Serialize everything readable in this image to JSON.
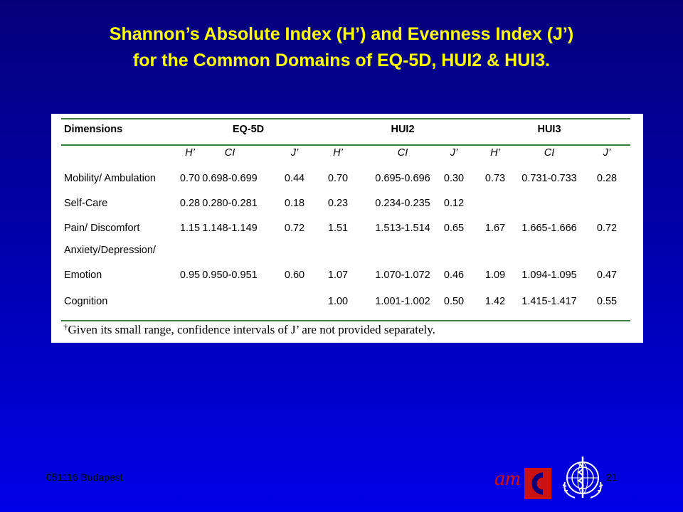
{
  "title": {
    "line1": "Shannon’s Absolute Index (H’) and Evenness Index (J’)",
    "line2": "for the Common Domains of EQ-5D, HUI2 & HUI3."
  },
  "table": {
    "header": {
      "dimensions": "Dimensions",
      "groups": [
        "EQ-5D",
        "HUI2",
        "HUI3"
      ]
    },
    "subheader": [
      "H’",
      "CI",
      "J’",
      "H’",
      "CI",
      "J’",
      "H’",
      "CI",
      "J’"
    ],
    "rows": [
      {
        "label": "Mobility/ Ambulation",
        "label2": "",
        "cells": [
          "0.70",
          "0.698-0.699",
          "0.44",
          "0.70",
          "0.695-0.696",
          "0.30",
          "0.73",
          "0.731-0.733",
          "0.28"
        ]
      },
      {
        "label": "Self-Care",
        "label2": "",
        "cells": [
          "0.28",
          "0.280-0.281",
          "0.18",
          "0.23",
          "0.234-0.235",
          "0.12",
          "",
          "",
          ""
        ]
      },
      {
        "label": "Pain/ Discomfort",
        "label2": "",
        "cells": [
          "1.15",
          "1.148-1.149",
          "0.72",
          "1.51",
          "1.513-1.514",
          "0.65",
          "1.67",
          "1.665-1.666",
          "0.72"
        ]
      },
      {
        "label": "Anxiety/Depression/",
        "label2": "Emotion",
        "cells": [
          "0.95",
          "0.950-0.951",
          "0.60",
          "1.07",
          "1.070-1.072",
          "0.46",
          "1.09",
          "1.094-1.095",
          "0.47"
        ]
      },
      {
        "label": "Cognition",
        "label2": "",
        "cells": [
          "",
          "",
          "",
          "1.00",
          "1.001-1.002",
          "0.50",
          "1.42",
          "1.415-1.417",
          "0.55"
        ]
      }
    ],
    "footnote_mark": "†",
    "footnote": "Given its small range, confidence intervals of J’ are not provided separately."
  },
  "footer": {
    "left": "051116 Budapest",
    "page": "21",
    "logo_amc_text": "am"
  },
  "colors": {
    "title": "#ffff00",
    "rule": "#3a7d3a",
    "amc_red": "#cc1111"
  }
}
